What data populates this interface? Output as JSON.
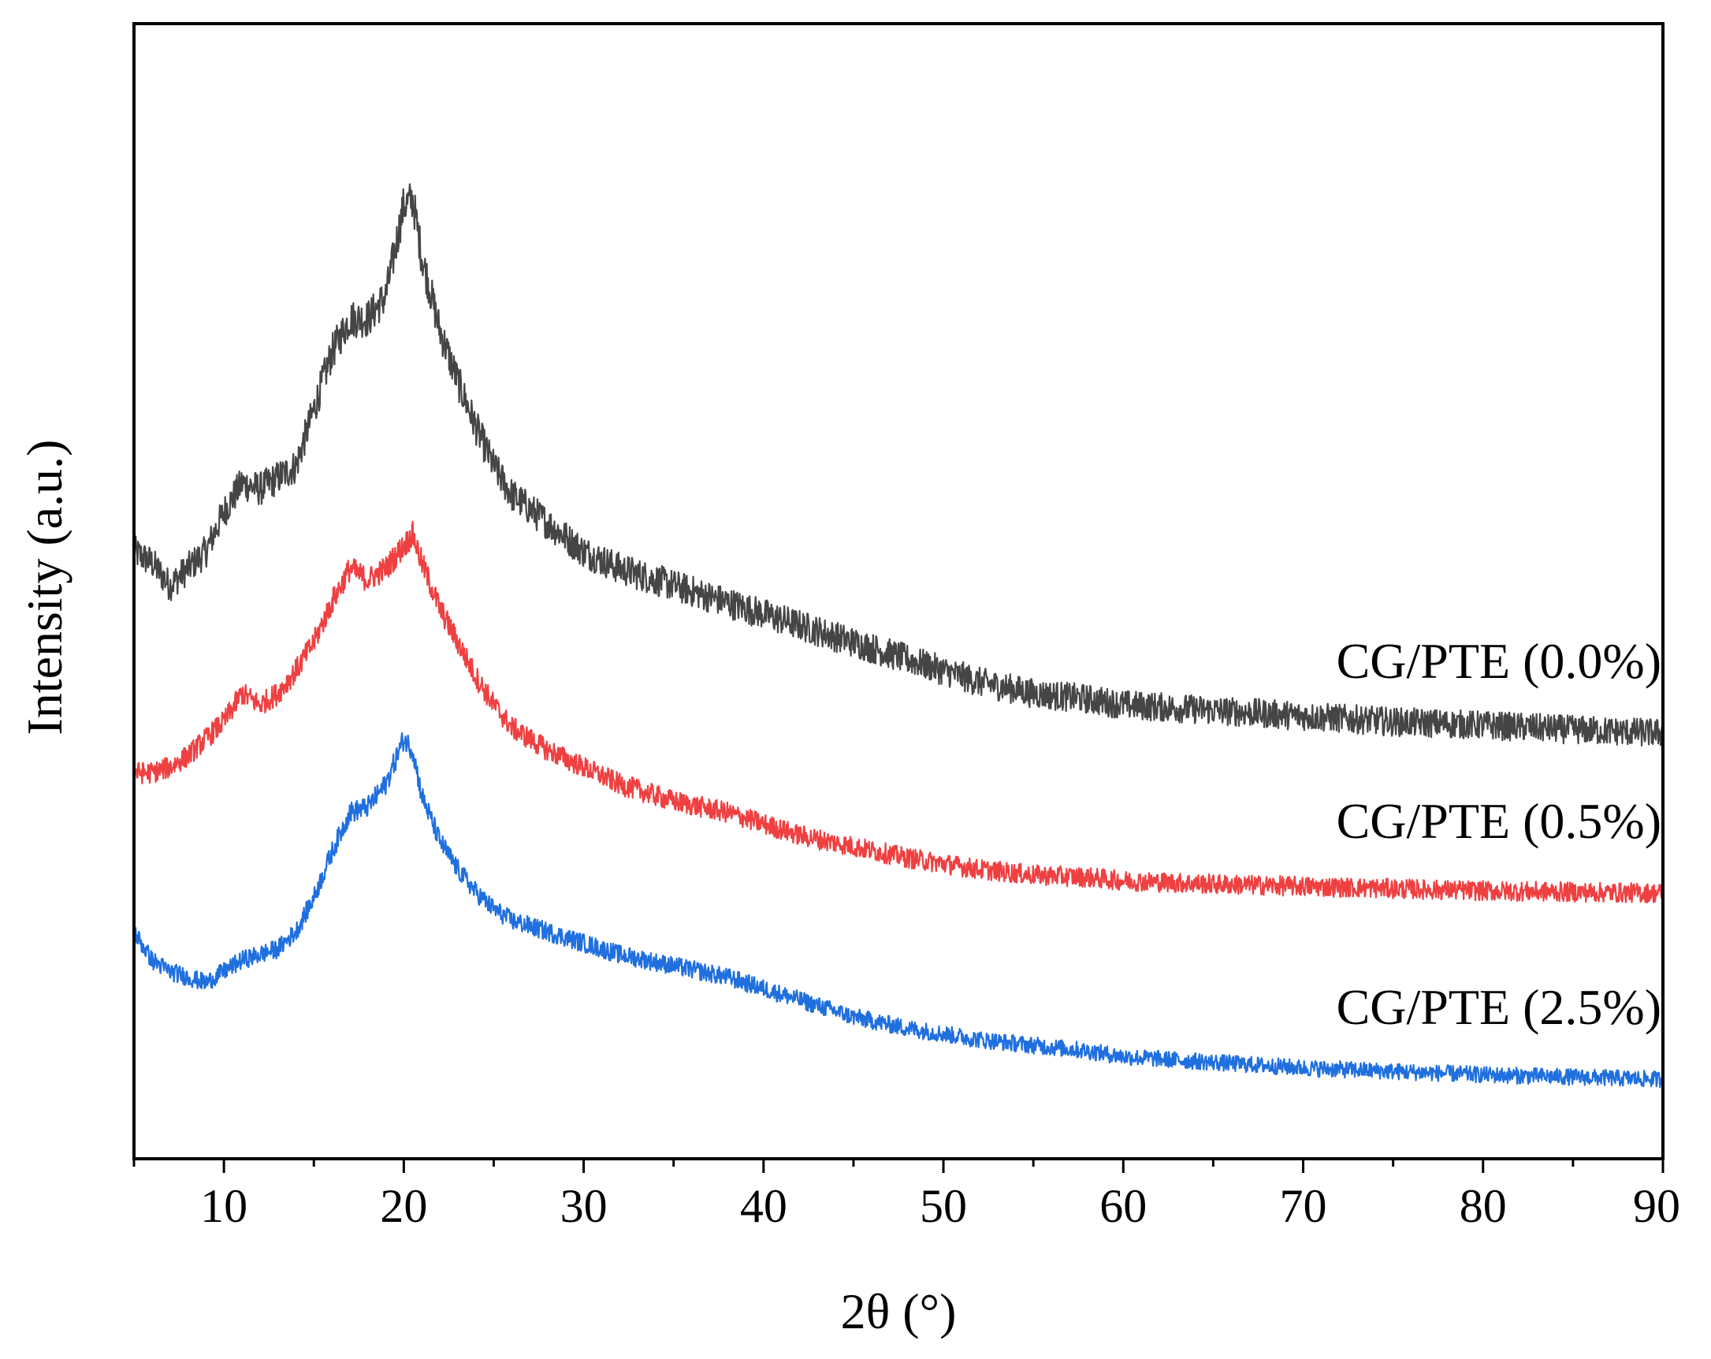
{
  "chart_data": {
    "type": "line",
    "title": "",
    "xlabel": "2θ (°)",
    "ylabel": "Intensity (a.u.)",
    "xlim": [
      5,
      90
    ],
    "ylim": [
      0,
      1
    ],
    "x_ticks": [
      10,
      20,
      30,
      40,
      50,
      60,
      70,
      80,
      90
    ],
    "x_tick_labels": [
      "10",
      "20",
      "30",
      "40",
      "50",
      "60",
      "70",
      "80",
      "90"
    ],
    "x_minor_ticks": [
      5,
      15,
      25,
      35,
      45,
      55,
      65,
      75,
      85
    ],
    "y_ticks_shown": false,
    "grid": false,
    "legend": "inline labels at right end of each curve",
    "series": [
      {
        "name": "CG/PTE (0.0%)",
        "label": "CG/PTE (0.0%)",
        "color": "#454545",
        "noise": 0.014,
        "x": [
          5,
          6,
          7,
          8,
          9,
          10,
          11,
          12,
          13,
          14,
          15,
          16,
          17,
          18,
          19,
          20,
          20.5,
          21,
          22,
          23,
          24,
          25,
          26,
          28,
          30,
          32,
          35,
          38,
          40,
          42,
          45,
          48,
          50,
          52,
          55,
          58,
          60,
          65,
          70,
          75,
          80,
          85,
          90
        ],
        "values": [
          0.535,
          0.525,
          0.505,
          0.52,
          0.535,
          0.57,
          0.595,
          0.59,
          0.6,
          0.61,
          0.66,
          0.71,
          0.74,
          0.74,
          0.76,
          0.84,
          0.845,
          0.795,
          0.73,
          0.685,
          0.645,
          0.61,
          0.585,
          0.56,
          0.535,
          0.52,
          0.505,
          0.49,
          0.48,
          0.47,
          0.455,
          0.44,
          0.43,
          0.42,
          0.41,
          0.405,
          0.4,
          0.395,
          0.39,
          0.385,
          0.382,
          0.378,
          0.375
        ]
      },
      {
        "name": "CG/PTE (0.5%)",
        "label": "CG/PTE (0.5%)",
        "color": "#ef4041",
        "noise": 0.011,
        "x": [
          5,
          6,
          7,
          8,
          9,
          10,
          11,
          12,
          13,
          14,
          15,
          16,
          17,
          18,
          19,
          20,
          20.5,
          21,
          22,
          23,
          24,
          25,
          26,
          28,
          30,
          32,
          35,
          38,
          40,
          42,
          45,
          48,
          50,
          52,
          55,
          58,
          60,
          65,
          70,
          75,
          80,
          85,
          90
        ],
        "values": [
          0.34,
          0.34,
          0.345,
          0.355,
          0.37,
          0.385,
          0.41,
          0.4,
          0.41,
          0.43,
          0.455,
          0.49,
          0.52,
          0.51,
          0.52,
          0.54,
          0.55,
          0.525,
          0.485,
          0.455,
          0.425,
          0.4,
          0.38,
          0.36,
          0.345,
          0.33,
          0.315,
          0.305,
          0.295,
          0.285,
          0.275,
          0.265,
          0.26,
          0.255,
          0.25,
          0.248,
          0.245,
          0.242,
          0.24,
          0.238,
          0.236,
          0.235,
          0.234
        ]
      },
      {
        "name": "CG/PTE (2.5%)",
        "label": "CG/PTE (2.5%)",
        "color": "#1f6fde",
        "noise": 0.011,
        "x": [
          5,
          6,
          7,
          8,
          9,
          10,
          11,
          12,
          13,
          14,
          15,
          16,
          17,
          18,
          19,
          20,
          20.5,
          21,
          22,
          23,
          24,
          25,
          26,
          28,
          30,
          32,
          35,
          38,
          40,
          42,
          45,
          48,
          50,
          52,
          55,
          58,
          60,
          65,
          70,
          75,
          80,
          85,
          90
        ],
        "values": [
          0.2,
          0.175,
          0.165,
          0.16,
          0.155,
          0.165,
          0.175,
          0.18,
          0.185,
          0.2,
          0.23,
          0.27,
          0.305,
          0.31,
          0.33,
          0.37,
          0.36,
          0.32,
          0.28,
          0.255,
          0.235,
          0.22,
          0.21,
          0.2,
          0.19,
          0.18,
          0.17,
          0.16,
          0.15,
          0.14,
          0.125,
          0.115,
          0.11,
          0.105,
          0.1,
          0.095,
          0.09,
          0.085,
          0.08,
          0.077,
          0.074,
          0.072,
          0.07
        ]
      }
    ]
  }
}
